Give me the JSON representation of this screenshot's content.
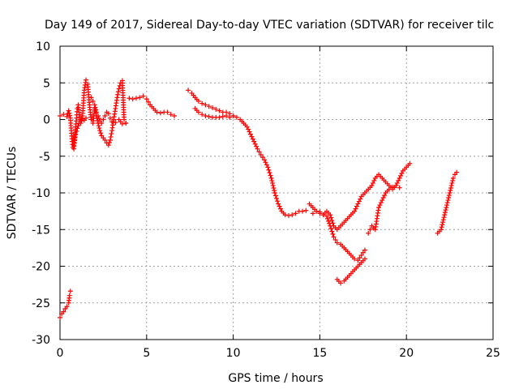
{
  "chart_data": {
    "type": "scatter",
    "title": "Day 149 of 2017, Sidereal Day-to-day VTEC variation (SDTVAR) for receiver tilc",
    "xlabel": "GPS time / hours",
    "ylabel": "SDTVAR / TECUs",
    "xlim": [
      0,
      25
    ],
    "ylim": [
      -30,
      10
    ],
    "xticks": [
      "0",
      "5",
      "10",
      "15",
      "20",
      "25"
    ],
    "yticks": [
      "10",
      "5",
      "0",
      "-5",
      "-10",
      "-15",
      "-20",
      "-25",
      "-30"
    ],
    "grid": true,
    "marker": "+",
    "color": "#ff0000",
    "series": [
      {
        "x": [
          0.0,
          0.1,
          0.2,
          0.3,
          0.4,
          0.5,
          0.55,
          0.6
        ],
        "y": [
          -27.0,
          -26.5,
          -26.2,
          -25.8,
          -25.5,
          -25.0,
          -24.0,
          -23.4
        ]
      },
      {
        "x": [
          0.0,
          0.2,
          0.4,
          0.5,
          0.6,
          0.65,
          0.7,
          0.75,
          0.8,
          0.85,
          0.9,
          0.95,
          1.0,
          1.05,
          1.1,
          1.15,
          1.2,
          1.3,
          1.4,
          1.5,
          1.6,
          1.7,
          1.8,
          1.9,
          2.0,
          2.1,
          2.2,
          2.3,
          2.4,
          2.5,
          2.6,
          2.7,
          2.8,
          2.9,
          3.0,
          3.1,
          3.2,
          3.3,
          3.4,
          3.5,
          3.6,
          3.7,
          3.8
        ],
        "y": [
          0.5,
          0.7,
          0.4,
          1.2,
          0.2,
          -1.5,
          -3.0,
          -3.8,
          -4.0,
          -2.5,
          -1.0,
          0.2,
          1.5,
          2.0,
          1.0,
          0.0,
          -0.5,
          0.5,
          4.0,
          5.4,
          4.8,
          2.0,
          0.0,
          -0.5,
          1.5,
          0.5,
          -0.5,
          -1.5,
          -2.2,
          -2.5,
          -2.8,
          -3.2,
          -3.5,
          -2.8,
          -1.5,
          0.0,
          1.5,
          3.0,
          4.2,
          5.0,
          5.3,
          0.0,
          -0.5
        ]
      },
      {
        "x": [
          0.8,
          0.9,
          1.0,
          1.1,
          1.2,
          1.3,
          1.4,
          1.5
        ],
        "y": [
          -3.5,
          -2.0,
          -1.2,
          -0.5,
          -0.2,
          0.1,
          -0.1,
          0.2
        ]
      },
      {
        "x": [
          1.8,
          1.9,
          2.0,
          2.1,
          2.2,
          2.3,
          2.4,
          2.5,
          2.6,
          2.7,
          2.8,
          2.9,
          3.0,
          3.2,
          3.4,
          3.6,
          3.8
        ],
        "y": [
          3.0,
          2.5,
          2.0,
          1.0,
          0.5,
          -0.2,
          -0.5,
          0.0,
          0.5,
          1.0,
          0.8,
          0.2,
          -0.3,
          -0.4,
          0.0,
          -0.6,
          -0.5
        ]
      },
      {
        "x": [
          4.0,
          4.2,
          4.4,
          4.6,
          4.8,
          5.0,
          5.2,
          5.4,
          5.6,
          5.8,
          6.0,
          6.2,
          6.4,
          6.6
        ],
        "y": [
          2.9,
          2.8,
          2.9,
          3.0,
          3.2,
          2.8,
          2.0,
          1.5,
          1.0,
          0.9,
          1.0,
          1.0,
          0.7,
          0.5
        ]
      },
      {
        "x": [
          7.4,
          7.6,
          7.8,
          8.0,
          8.2,
          8.4,
          8.6,
          8.8,
          9.0,
          9.2,
          9.4,
          9.6,
          9.8,
          10.0,
          10.2,
          10.4,
          10.6,
          10.8,
          11.0,
          11.2,
          11.4,
          11.6,
          11.8,
          12.0,
          12.2,
          12.4,
          12.6,
          12.8,
          13.0,
          13.2,
          13.4,
          13.6,
          13.8,
          14.0,
          14.2
        ],
        "y": [
          4.0,
          3.6,
          3.0,
          2.5,
          2.2,
          2.0,
          1.8,
          1.6,
          1.4,
          1.2,
          1.0,
          1.0,
          0.8,
          0.5,
          0.3,
          0.0,
          -0.5,
          -1.0,
          -2.0,
          -3.0,
          -4.0,
          -4.8,
          -5.5,
          -6.5,
          -8.0,
          -10.0,
          -11.5,
          -12.5,
          -13.0,
          -13.1,
          -13.0,
          -12.8,
          -12.5,
          -12.5,
          -12.4
        ]
      },
      {
        "x": [
          7.8,
          8.0,
          8.2,
          8.4,
          8.6,
          8.8,
          9.0,
          9.2,
          9.4,
          9.6,
          9.8,
          10.0
        ],
        "y": [
          1.5,
          1.0,
          0.7,
          0.5,
          0.4,
          0.3,
          0.3,
          0.3,
          0.4,
          0.5,
          0.3,
          0.5
        ]
      },
      {
        "x": [
          14.4,
          14.6,
          14.8,
          15.0,
          15.2,
          15.4,
          15.6,
          15.8,
          16.0,
          16.2,
          16.4,
          16.6,
          16.8,
          17.0,
          17.2,
          17.4,
          17.6,
          17.8,
          18.0,
          18.2,
          18.4,
          18.6,
          18.8,
          19.0,
          19.2,
          19.4,
          19.6,
          19.8,
          20.0,
          20.2
        ],
        "y": [
          -11.5,
          -12.0,
          -12.5,
          -12.8,
          -13.0,
          -12.5,
          -13.0,
          -14.5,
          -15.0,
          -14.5,
          -14.0,
          -13.5,
          -13.0,
          -12.5,
          -11.5,
          -10.5,
          -10.0,
          -9.5,
          -9.0,
          -8.0,
          -7.5,
          -8.0,
          -8.5,
          -9.0,
          -9.5,
          -9.0,
          -8.0,
          -7.0,
          -6.5,
          -6.0
        ]
      },
      {
        "x": [
          14.6,
          14.8,
          15.0,
          15.2,
          15.4,
          15.6,
          15.8,
          16.0,
          16.2,
          16.4,
          16.6,
          16.8,
          17.0,
          17.2,
          17.4,
          17.6
        ],
        "y": [
          -12.8,
          -12.5,
          -12.6,
          -13.0,
          -13.2,
          -14.5,
          -16.0,
          -16.8,
          -17.0,
          -17.5,
          -18.0,
          -18.5,
          -19.0,
          -19.2,
          -18.5,
          -17.8
        ]
      },
      {
        "x": [
          16.0,
          16.2,
          16.4,
          16.6,
          16.8,
          17.0,
          17.2,
          17.4,
          17.6
        ],
        "y": [
          -21.8,
          -22.3,
          -22.0,
          -21.5,
          -21.0,
          -20.5,
          -20.0,
          -19.5,
          -19.0
        ]
      },
      {
        "x": [
          17.8,
          17.9,
          18.0,
          18.1,
          18.2,
          18.3,
          18.4,
          18.6,
          18.8,
          19.0,
          19.2,
          19.4,
          19.6
        ],
        "y": [
          -15.5,
          -15.0,
          -14.5,
          -14.8,
          -15.0,
          -13.5,
          -12.0,
          -11.0,
          -10.0,
          -9.5,
          -9.2,
          -9.0,
          -9.3
        ]
      },
      {
        "x": [
          21.8,
          22.0,
          22.1,
          22.2,
          22.3,
          22.4,
          22.5,
          22.6,
          22.7,
          22.8,
          22.9
        ],
        "y": [
          -15.5,
          -15.0,
          -14.0,
          -13.0,
          -12.0,
          -11.0,
          -10.0,
          -9.0,
          -8.0,
          -7.5,
          -7.2
        ]
      }
    ]
  }
}
